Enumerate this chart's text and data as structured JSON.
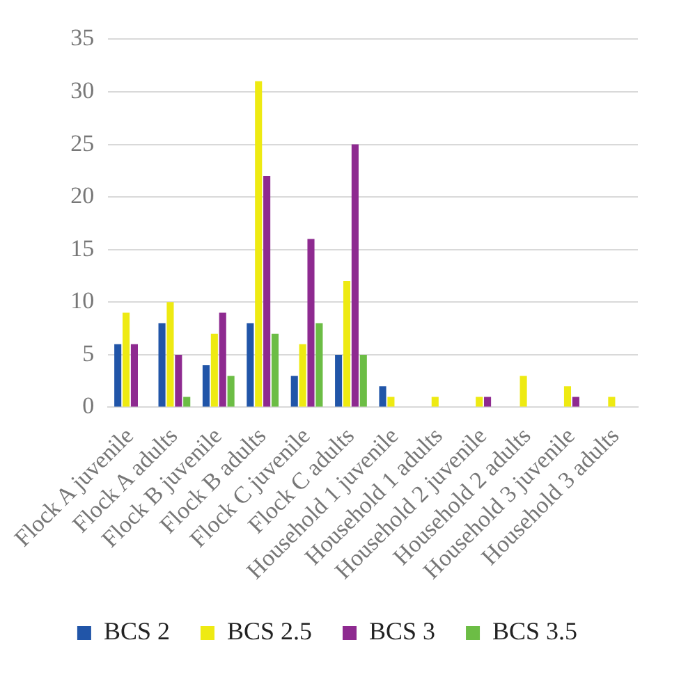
{
  "chart_data": {
    "type": "bar",
    "categories": [
      "Flock A juvenile",
      "Flock A adults",
      "Flock B juvenile",
      "Flock B adults",
      "Flock C juvenile",
      "Flock C adults",
      "Household 1 juvenile",
      "Household 1 adults",
      "Household 2 juvenile",
      "Household 2 adults",
      "Household 3 juvenile",
      "Household 3 adults"
    ],
    "series": [
      {
        "name": "BCS 2",
        "color": "#2155a8",
        "values": [
          6,
          8,
          4,
          8,
          3,
          5,
          2,
          0,
          0,
          0,
          0,
          0
        ]
      },
      {
        "name": "BCS 2.5",
        "color": "#eeea12",
        "values": [
          9,
          10,
          7,
          31,
          6,
          12,
          1,
          1,
          1,
          3,
          2,
          1
        ]
      },
      {
        "name": "BCS 3",
        "color": "#8e2a90",
        "values": [
          6,
          5,
          9,
          22,
          16,
          25,
          0,
          0,
          1,
          0,
          1,
          0
        ]
      },
      {
        "name": "BCS 3.5",
        "color": "#6cbd45",
        "values": [
          0,
          1,
          3,
          7,
          8,
          5,
          0,
          0,
          0,
          0,
          0,
          0
        ]
      }
    ],
    "ylim": [
      0,
      35
    ],
    "yticks": [
      0,
      5,
      10,
      15,
      20,
      25,
      30,
      35
    ],
    "grid": "y",
    "legend": "bottom"
  }
}
